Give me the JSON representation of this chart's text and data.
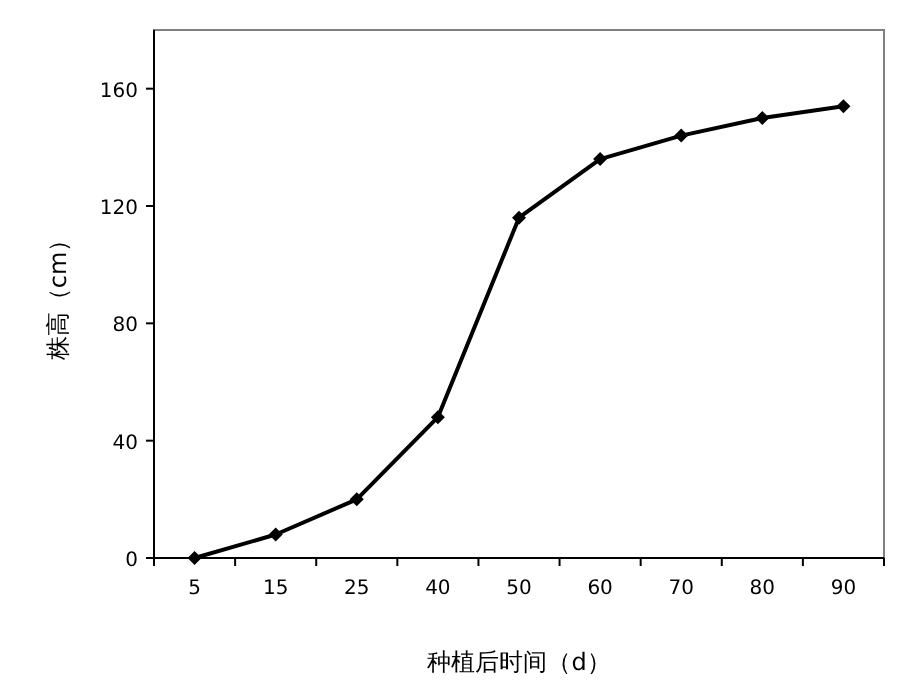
{
  "chart_data": {
    "type": "line",
    "xlabel": "种植后时间（d）",
    "ylabel": "株高（cm）",
    "categories": [
      "5",
      "15",
      "25",
      "40",
      "50",
      "60",
      "70",
      "80",
      "90"
    ],
    "series": [
      {
        "color": "#000000",
        "values": [
          0,
          8,
          20,
          48,
          116,
          136,
          144,
          150,
          154
        ]
      }
    ],
    "ylim": [
      0,
      180
    ],
    "yticks": [
      0,
      40,
      80,
      120,
      160
    ],
    "marker": "diamond",
    "line_style": "solid",
    "grid": false
  }
}
